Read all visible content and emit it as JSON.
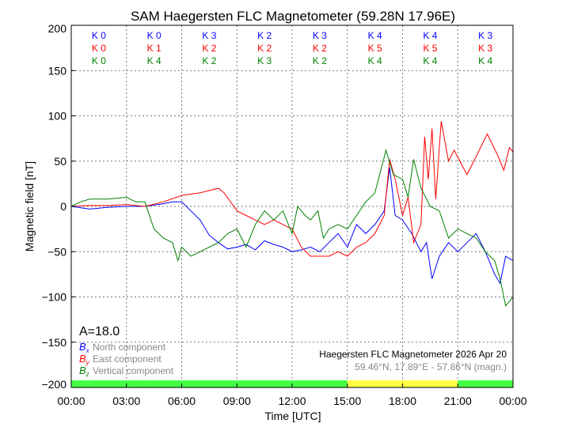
{
  "chart_data": {
    "type": "line",
    "title": "SAM Haegersten FLC Magnetometer (59.28N 17.96E)",
    "xlabel": "Time [UTC]",
    "ylabel": "Magnetic field [nT]",
    "xlim": [
      0,
      24
    ],
    "ylim": [
      -200,
      200
    ],
    "grid": true,
    "x_ticks": [
      "00:00",
      "03:00",
      "06:00",
      "09:00",
      "12:00",
      "15:00",
      "18:00",
      "21:00",
      "00:00"
    ],
    "y_ticks": [
      "200",
      "150",
      "100",
      "50",
      "0",
      "−50",
      "−100",
      "−150",
      "−200"
    ],
    "a_index": "A=18.0",
    "k_indices": {
      "x": [
        "K 0",
        "K 0",
        "K 3",
        "K 2",
        "K 3",
        "K 4",
        "K 4",
        "K 3"
      ],
      "y": [
        "K 0",
        "K 1",
        "K 2",
        "K 2",
        "K 2",
        "K 5",
        "K 5",
        "K 3"
      ],
      "z": [
        "K 0",
        "K 4",
        "K 2",
        "K 3",
        "K 2",
        "K 4",
        "K 4",
        "K 4"
      ]
    },
    "legend_position": "bottom-left",
    "station_label": "Haegersten FLC Magnetometer 2026 Apr 20",
    "coords_label": "59.46°N, 17.89°E - 57.86°N (magn.)",
    "activity_bar": [
      {
        "from": 0,
        "to": 15,
        "color": "#44ff44"
      },
      {
        "from": 15,
        "to": 21,
        "color": "#ffff44"
      },
      {
        "from": 21,
        "to": 24,
        "color": "#44ff44"
      }
    ],
    "series": [
      {
        "name": "North component",
        "symbol": "Bx",
        "sub": "x",
        "color": "#0000ff",
        "x": [
          0,
          1,
          2,
          3,
          4,
          5,
          5.5,
          6,
          6.5,
          7,
          7.5,
          8,
          8.5,
          9,
          9.5,
          10,
          10.5,
          11,
          11.5,
          12,
          12.5,
          13,
          13.5,
          14,
          14.5,
          15,
          15.5,
          16,
          16.5,
          17,
          17.3,
          17.6,
          18,
          18.5,
          19,
          19.3,
          19.6,
          20,
          20.5,
          21,
          21.5,
          22,
          22.5,
          23,
          23.3,
          23.6,
          24
        ],
        "y": [
          0,
          -3,
          -1,
          0,
          0,
          3,
          5,
          5,
          -5,
          -15,
          -32,
          -40,
          -47,
          -45,
          -42,
          -48,
          -38,
          -42,
          -45,
          -50,
          -48,
          -45,
          -50,
          -40,
          -30,
          -45,
          -20,
          -30,
          -20,
          -5,
          43,
          -10,
          -15,
          -30,
          -50,
          -40,
          -80,
          -55,
          -40,
          -50,
          -40,
          -30,
          -50,
          -75,
          -85,
          -55,
          -60
        ]
      },
      {
        "name": "East component",
        "symbol": "By",
        "sub": "y",
        "color": "#ff0000",
        "x": [
          0,
          1,
          2,
          3,
          4,
          5,
          6,
          7,
          8,
          8.3,
          9,
          9.5,
          10,
          10.5,
          11,
          11.5,
          12,
          12.5,
          13,
          14,
          14.5,
          15,
          15.5,
          16,
          16.5,
          17,
          17.3,
          17.6,
          18,
          18.3,
          18.6,
          19,
          19.2,
          19.4,
          19.6,
          19.8,
          20.1,
          20.5,
          20.8,
          21.5,
          22,
          22.6,
          23.2,
          23.5,
          23.8,
          24
        ],
        "y": [
          0,
          1,
          1,
          2,
          0,
          5,
          12,
          15,
          20,
          15,
          -5,
          -10,
          -15,
          -20,
          -15,
          -20,
          -25,
          -45,
          -55,
          -55,
          -50,
          -55,
          -45,
          -40,
          -30,
          -10,
          52,
          30,
          -10,
          10,
          -40,
          -20,
          77,
          30,
          86,
          8,
          94,
          50,
          62,
          35,
          55,
          80,
          55,
          40,
          65,
          60
        ]
      },
      {
        "name": "Vertical component",
        "symbol": "Bz",
        "sub": "z",
        "color": "#008000",
        "x": [
          0,
          0.5,
          1,
          2,
          3,
          3.5,
          4,
          4.5,
          5,
          5.5,
          5.8,
          6,
          6.5,
          7,
          7.5,
          8,
          8.5,
          9,
          9.5,
          10,
          10.5,
          11,
          11.5,
          12,
          12.3,
          12.7,
          13,
          13.4,
          13.7,
          14,
          14.5,
          15,
          15.5,
          16,
          16.5,
          17.1,
          17.5,
          18,
          18.3,
          18.6,
          19,
          19.5,
          20,
          20.5,
          21,
          21.5,
          22,
          22.5,
          23,
          23.3,
          23.6,
          24
        ],
        "y": [
          0,
          5,
          8,
          8,
          10,
          5,
          5,
          -25,
          -35,
          -40,
          -60,
          -45,
          -55,
          -50,
          -45,
          -40,
          -30,
          -25,
          -45,
          -20,
          -5,
          -15,
          -5,
          -30,
          0,
          -10,
          -15,
          -5,
          -35,
          -25,
          -20,
          -25,
          -10,
          5,
          15,
          62,
          35,
          30,
          10,
          52,
          20,
          0,
          -5,
          -35,
          -25,
          -30,
          -35,
          -50,
          -60,
          -80,
          -110,
          -100
        ]
      }
    ]
  }
}
